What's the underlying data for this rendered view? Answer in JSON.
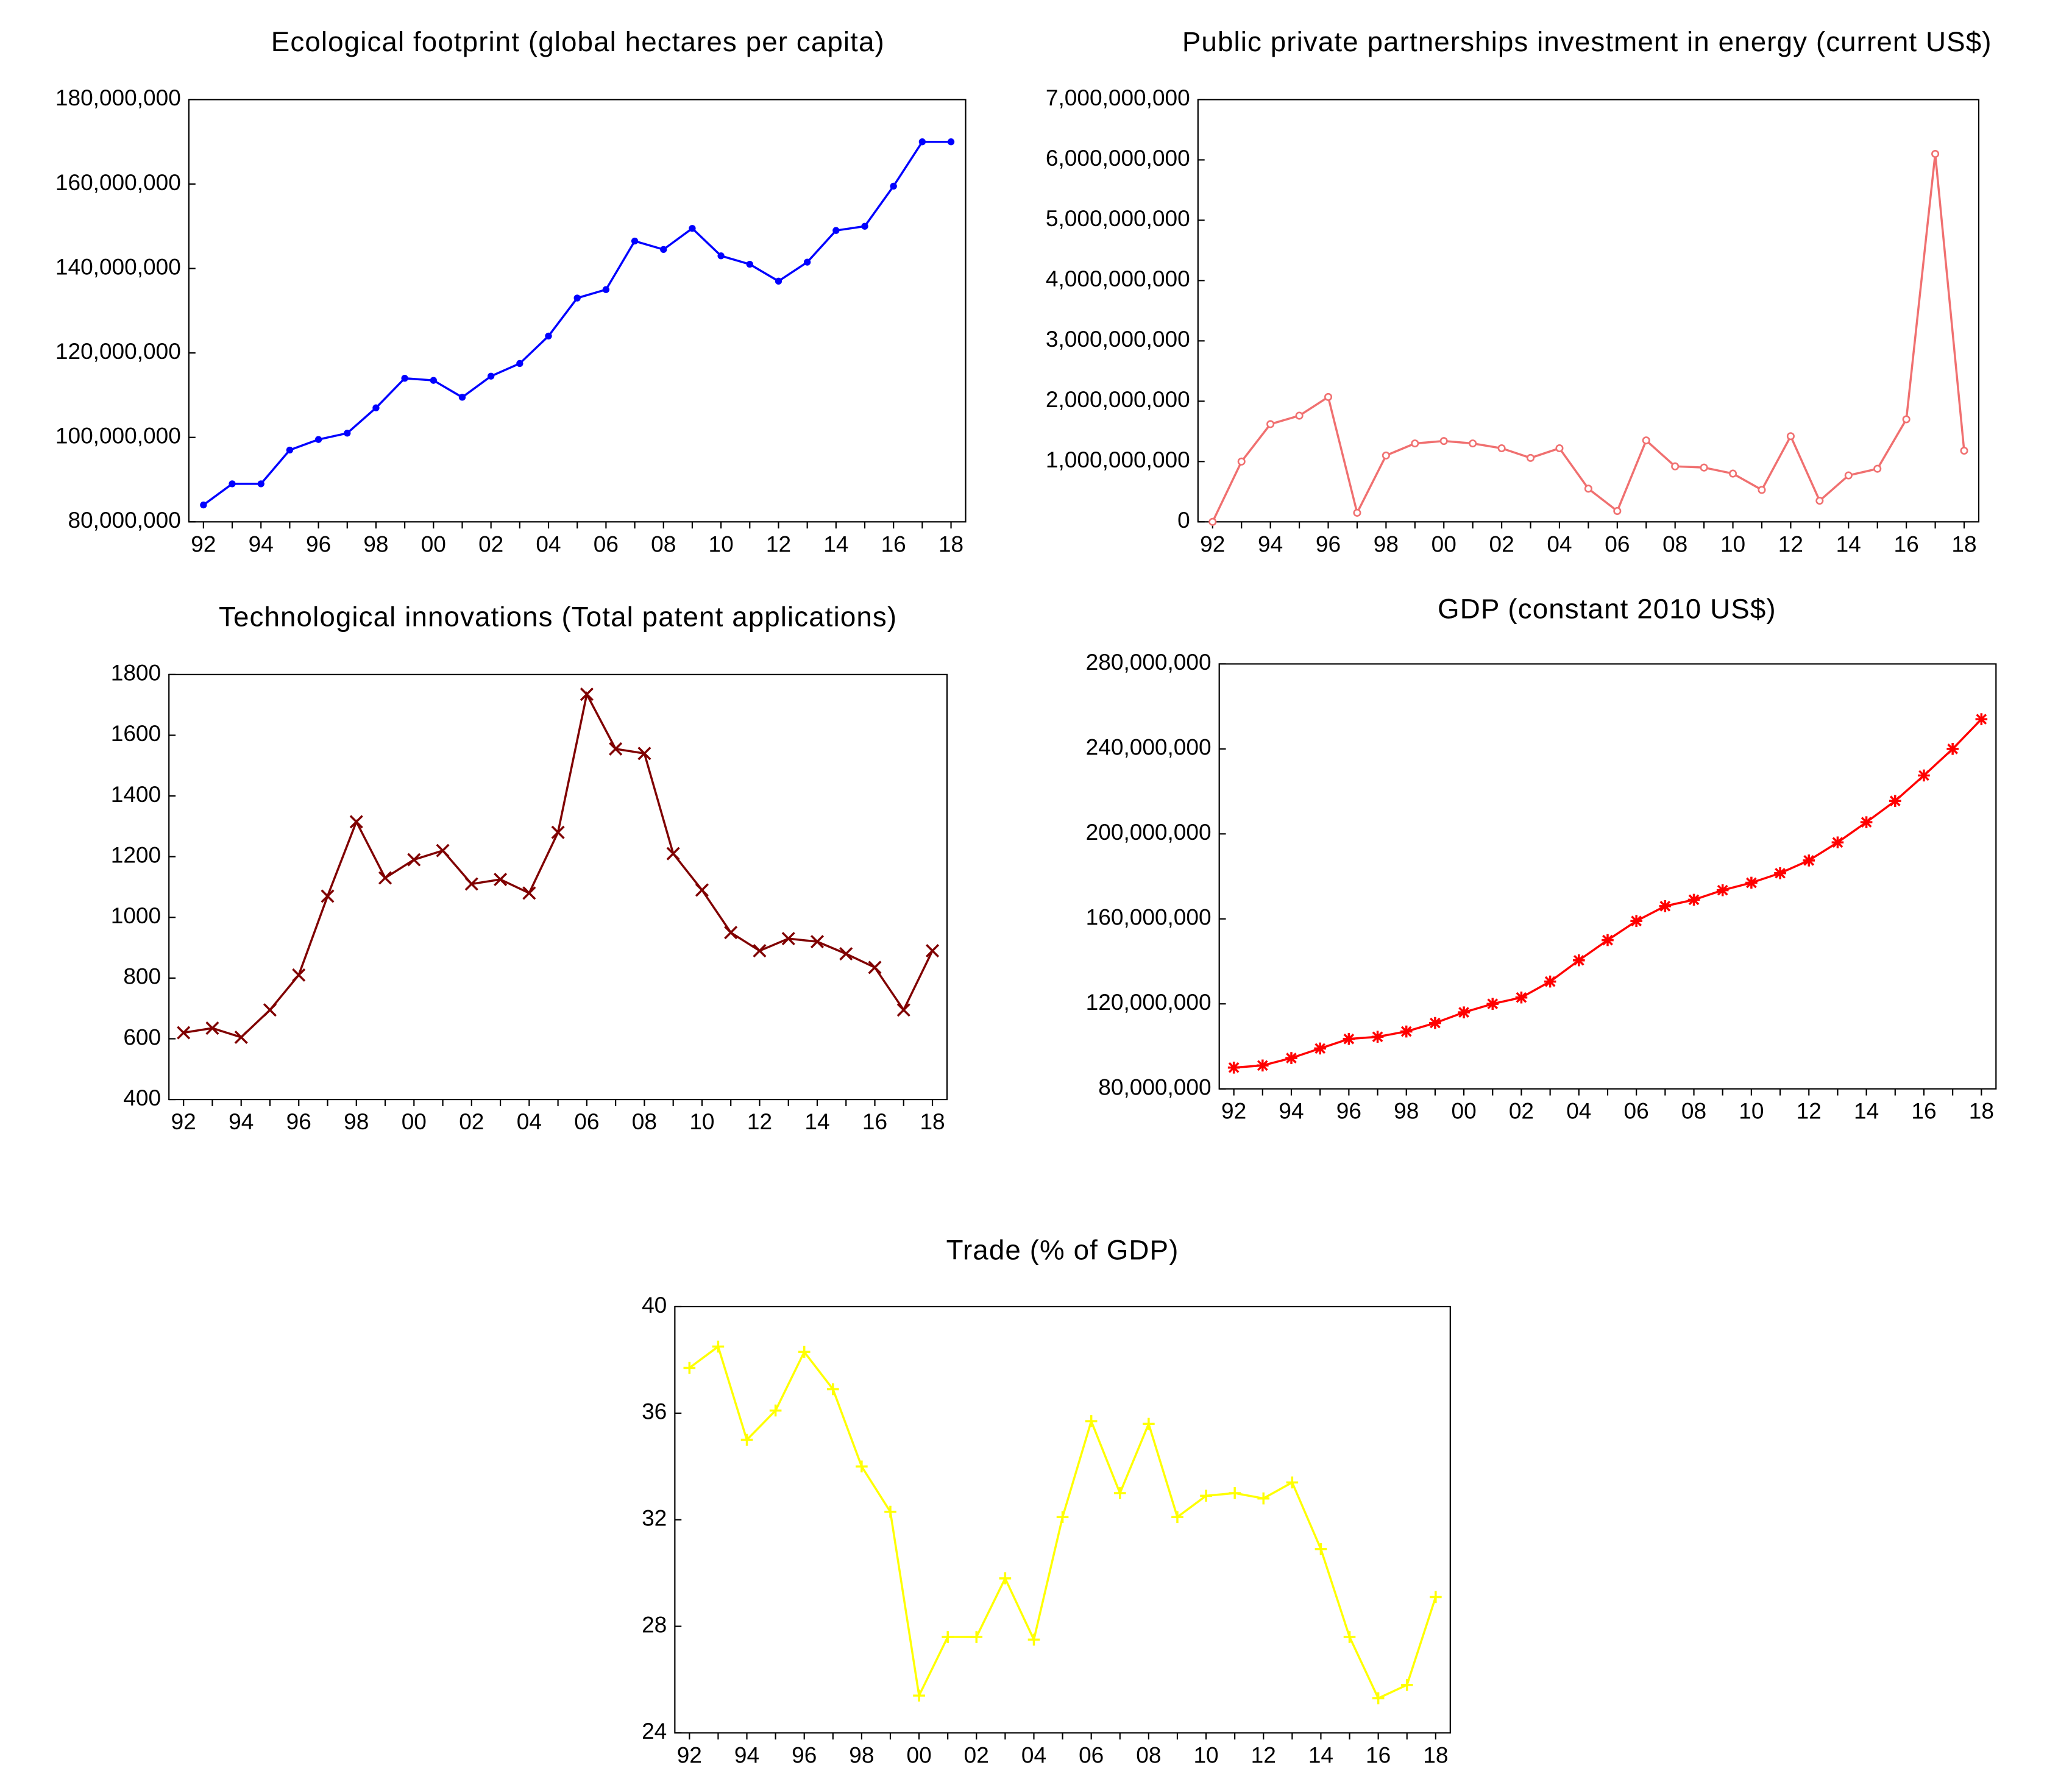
{
  "chart_data": [
    {
      "type": "line",
      "title": "Ecological footprint (global hectares per capita)",
      "marker": "dot",
      "color": "#0000ff",
      "categories": [
        "92",
        null,
        "94",
        null,
        "96",
        null,
        "98",
        null,
        "00",
        null,
        "02",
        null,
        "04",
        null,
        "06",
        null,
        "08",
        null,
        "10",
        null,
        "12",
        null,
        "14",
        null,
        "16",
        null,
        "18"
      ],
      "values": [
        84000000,
        89000000,
        89000000,
        97000000,
        99500000,
        101000000,
        107000000,
        114000000,
        113500000,
        109500000,
        114500000,
        117500000,
        124000000,
        133000000,
        135000000,
        146500000,
        144500000,
        149500000,
        143000000,
        141000000,
        137000000,
        141500000,
        149000000,
        150000000,
        159500000,
        170000000,
        170000000
      ],
      "ylim": [
        80000000,
        180000000
      ],
      "yticks": [
        {
          "value": 80000000,
          "label": "80,000,000"
        },
        {
          "value": 100000000,
          "label": "100,000,000"
        },
        {
          "value": 120000000,
          "label": "120,000,000"
        },
        {
          "value": 140000000,
          "label": "140,000,000"
        },
        {
          "value": 160000000,
          "label": "160,000,000"
        },
        {
          "value": 180000000,
          "label": "180,000,000"
        }
      ]
    },
    {
      "type": "line",
      "title": "Public private partnerships investment in energy (current US$)",
      "marker": "open",
      "color": "#f07070",
      "categories": [
        "92",
        null,
        "94",
        null,
        "96",
        null,
        "98",
        null,
        "00",
        null,
        "02",
        null,
        "04",
        null,
        "06",
        null,
        "08",
        null,
        "10",
        null,
        "12",
        null,
        "14",
        null,
        "16",
        null,
        "18"
      ],
      "values": [
        0,
        1000000000,
        1620000000,
        1760000000,
        2070000000,
        150000000,
        1100000000,
        1300000000,
        1340000000,
        1300000000,
        1220000000,
        1060000000,
        1220000000,
        550000000,
        180000000,
        1350000000,
        920000000,
        900000000,
        800000000,
        530000000,
        1420000000,
        350000000,
        770000000,
        880000000,
        1700000000,
        6100000000,
        1180000000
      ],
      "ylim": [
        0,
        7000000000
      ],
      "yticks": [
        0,
        {
          "value": 1000000000,
          "label": "1,000,000,000"
        },
        {
          "value": 2000000000,
          "label": "2,000,000,000"
        },
        {
          "value": 3000000000,
          "label": "3,000,000,000"
        },
        {
          "value": 4000000000,
          "label": "4,000,000,000"
        },
        {
          "value": 5000000000,
          "label": "5,000,000,000"
        },
        {
          "value": 6000000000,
          "label": "6,000,000,000"
        },
        {
          "value": 7000000000,
          "label": "7,000,000,000"
        }
      ]
    },
    {
      "type": "line",
      "title": "Technological innovations (Total patent applications)",
      "marker": "x",
      "color": "#800000",
      "categories": [
        "92",
        null,
        "94",
        null,
        "96",
        null,
        "98",
        null,
        "00",
        null,
        "02",
        null,
        "04",
        null,
        "06",
        null,
        "08",
        null,
        "10",
        null,
        "12",
        null,
        "14",
        null,
        "16",
        null,
        "18"
      ],
      "values": [
        620,
        635,
        605,
        695,
        810,
        1070,
        1315,
        1130,
        1190,
        1220,
        1110,
        1125,
        1080,
        1280,
        1735,
        1555,
        1540,
        1210,
        1090,
        950,
        890,
        930,
        920,
        880,
        835,
        695,
        890
      ],
      "ylim": [
        400,
        1800
      ],
      "yticks": [
        400,
        600,
        800,
        1000,
        1200,
        1400,
        1600,
        1800
      ]
    },
    {
      "type": "line",
      "title": "GDP (constant 2010 US$)",
      "marker": "asterisk",
      "color": "#ff0000",
      "categories": [
        "92",
        null,
        "94",
        null,
        "96",
        null,
        "98",
        null,
        "00",
        null,
        "02",
        null,
        "04",
        null,
        "06",
        null,
        "08",
        null,
        "10",
        null,
        "12",
        null,
        "14",
        null,
        "16",
        null,
        "18"
      ],
      "values": [
        90000000,
        91000000,
        94500000,
        99000000,
        103500000,
        104500000,
        107000000,
        111000000,
        116000000,
        120000000,
        123000000,
        130500000,
        140500000,
        150000000,
        159000000,
        166000000,
        169000000,
        173500000,
        177000000,
        181500000,
        187500000,
        196000000,
        205500000,
        215500000,
        227500000,
        240000000,
        254000000
      ],
      "ylim": [
        80000000,
        280000000
      ],
      "yticks": [
        {
          "value": 80000000,
          "label": "80,000,000"
        },
        {
          "value": 120000000,
          "label": "120,000,000"
        },
        {
          "value": 160000000,
          "label": "160,000,000"
        },
        {
          "value": 200000000,
          "label": "200,000,000"
        },
        {
          "value": 240000000,
          "label": "240,000,000"
        },
        {
          "value": 280000000,
          "label": "280,000,000"
        }
      ]
    },
    {
      "type": "line",
      "title": "Trade (% of GDP)",
      "marker": "plus",
      "color": "#ffff00",
      "categories": [
        "92",
        null,
        "94",
        null,
        "96",
        null,
        "98",
        null,
        "00",
        null,
        "02",
        null,
        "04",
        null,
        "06",
        null,
        "08",
        null,
        "10",
        null,
        "12",
        null,
        "14",
        null,
        "16",
        null,
        "18"
      ],
      "values": [
        37.7,
        38.5,
        35.0,
        36.1,
        38.3,
        36.9,
        34.0,
        32.3,
        25.4,
        27.6,
        27.6,
        29.8,
        27.5,
        32.1,
        35.7,
        33.0,
        35.6,
        32.1,
        32.9,
        33.0,
        32.8,
        33.4,
        30.9,
        27.6,
        25.3,
        25.8,
        29.1
      ],
      "ylim": [
        24,
        40
      ],
      "yticks": [
        24,
        28,
        32,
        36,
        40
      ]
    }
  ]
}
